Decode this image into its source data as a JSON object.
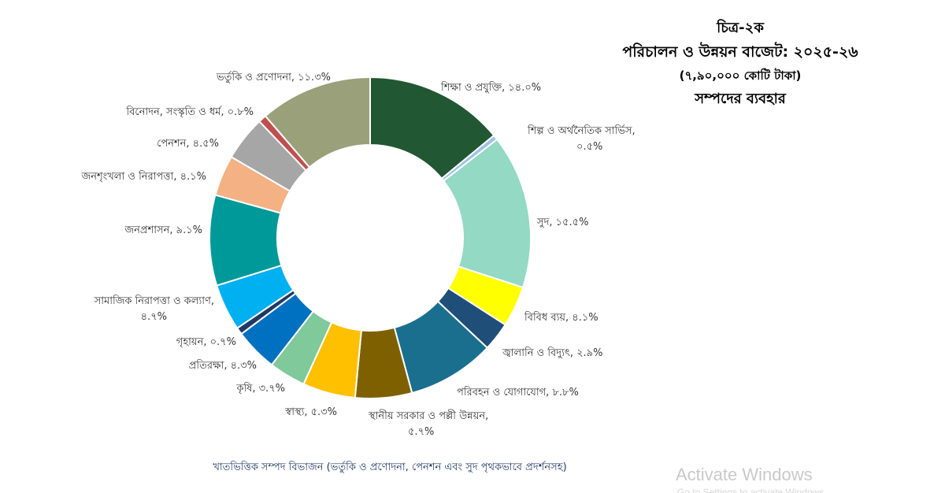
{
  "header": {
    "figure_label": "চিত্র-২ক",
    "title": "পরিচালন ও উন্নয়ন বাজেট: ২০২৫-২৬",
    "total": "(৭,৯০,০০০ কোটি টাকা)",
    "subtitle": "সম্পদের ব্যবহার"
  },
  "caption": "খাতভিত্তিক সম্পদ বিভাজন (ভর্তুকি ও প্রণোদনা, পেনশন এবং সুদ পৃথকভাবে প্রদর্শনসহ)",
  "watermark": {
    "title": "Activate Windows",
    "sub": "Go to Settings to activate Windows."
  },
  "chart_data": {
    "type": "pie",
    "donut": true,
    "legend": "none (data labels beside slices)",
    "slices": [
      {
        "label": "শিক্ষা ও প্রযুক্তি, ১৪.০%",
        "value": 14.0,
        "color": "#215732"
      },
      {
        "label": "শিল্প ও অর্থনৈতিক সার্ভিস, ০.৫%",
        "value": 0.5,
        "color": "#9dc3e6"
      },
      {
        "label": "সুদ, ১৫.৫%",
        "value": 15.5,
        "color": "#93d9c3"
      },
      {
        "label": "বিবিধ ব্যয়, ৪.১%",
        "value": 4.1,
        "color": "#ffff00"
      },
      {
        "label": "জ্বালানি ও বিদ্যুৎ, ২.৯%",
        "value": 2.9,
        "color": "#1f4e79"
      },
      {
        "label": "পরিবহন ও যোগাযোগ, ৮.৮%",
        "value": 8.8,
        "color": "#1a6f8f"
      },
      {
        "label": "স্থানীয় সরকার ও পল্লী উন্নয়ন, ৫.৭%",
        "value": 5.7,
        "color": "#7f6000"
      },
      {
        "label": "স্বাস্থ্য, ৫.৩%",
        "value": 5.3,
        "color": "#ffc000"
      },
      {
        "label": "কৃষি, ৩.৭%",
        "value": 3.7,
        "color": "#7fc99b"
      },
      {
        "label": "প্রতিরক্ষা, ৪.৩%",
        "value": 4.3,
        "color": "#0070c0"
      },
      {
        "label": "গৃহায়ন, ০.৭%",
        "value": 0.7,
        "color": "#203864"
      },
      {
        "label": "সামাজিক নিরাপত্তা ও কল্যাণ, ৪.৭%",
        "value": 4.7,
        "color": "#00b0f0"
      },
      {
        "label": "জনপ্রশাসন, ৯.১%",
        "value": 9.1,
        "color": "#009999"
      },
      {
        "label": "জনশৃংখলা ও নিরাপত্তা, ৪.১%",
        "value": 4.1,
        "color": "#f4b183"
      },
      {
        "label": "পেনশন, ৪.৫%",
        "value": 4.5,
        "color": "#a6a6a6"
      },
      {
        "label": "বিনোদন, সংস্কৃতি ও ধর্ম, ০.৮%",
        "value": 0.8,
        "color": "#c0504d"
      },
      {
        "label": "ভর্তুকি ও প্রণোদনা, ১১.৩%",
        "value": 11.3,
        "color": "#9aa07a"
      }
    ]
  }
}
